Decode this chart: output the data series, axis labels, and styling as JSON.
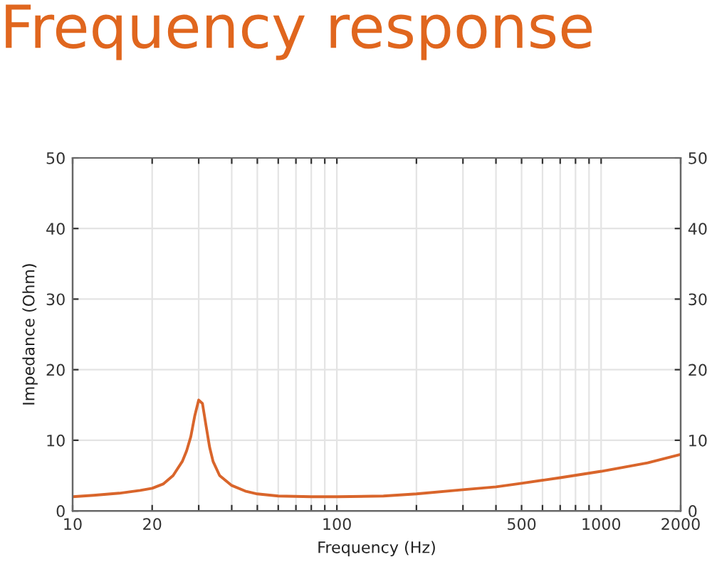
{
  "chart_data": {
    "type": "line",
    "title": "Frequency response",
    "xlabel": "Frequency (Hz)",
    "ylabel": "Impedance (Ohm)",
    "log": "x",
    "grid": true,
    "marker": "none",
    "line_style": "solid",
    "xlim": [
      10,
      2000
    ],
    "xticks": [
      10,
      20,
      {
        "value": 30,
        "label": null
      },
      {
        "value": 40,
        "label": null
      },
      {
        "value": 50,
        "label": null
      },
      {
        "value": 60,
        "label": null
      },
      {
        "value": 70,
        "label": null
      },
      {
        "value": 80,
        "label": null
      },
      {
        "value": 90,
        "label": null
      },
      100,
      {
        "value": 200,
        "label": null
      },
      {
        "value": 300,
        "label": null
      },
      {
        "value": 400,
        "label": null
      },
      500,
      {
        "value": 600,
        "label": null
      },
      {
        "value": 700,
        "label": null
      },
      {
        "value": 800,
        "label": null
      },
      {
        "value": 900,
        "label": null
      },
      1000,
      2000
    ],
    "ylim": [
      0,
      50
    ],
    "yticks": [
      0,
      10,
      20,
      30,
      40,
      50
    ],
    "y2lim": [
      0,
      50
    ],
    "y2ticks": [
      0,
      10,
      20,
      30,
      40,
      50
    ],
    "x": [
      10,
      12,
      15,
      18,
      20,
      22,
      24,
      26,
      27,
      28,
      29,
      30,
      31,
      32,
      33,
      34,
      36,
      40,
      45,
      50,
      60,
      80,
      100,
      150,
      200,
      300,
      400,
      500,
      700,
      1000,
      1500,
      2000
    ],
    "series": [
      {
        "color": "#d9652b",
        "values": [
          2.0,
          2.2,
          2.5,
          2.9,
          3.2,
          3.8,
          5.0,
          7.0,
          8.5,
          10.5,
          13.5,
          15.7,
          15.2,
          12.0,
          9.0,
          7.0,
          5.0,
          3.6,
          2.8,
          2.4,
          2.1,
          2.0,
          2.0,
          2.1,
          2.4,
          3.0,
          3.4,
          3.9,
          4.7,
          5.6,
          6.8,
          8.0
        ]
      }
    ]
  }
}
